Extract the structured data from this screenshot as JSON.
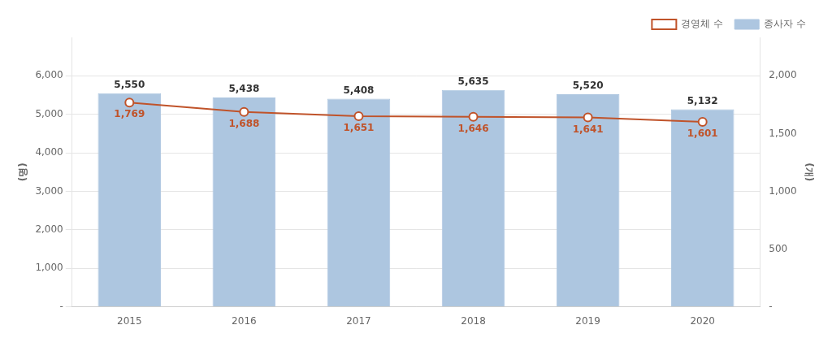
{
  "chart_data": {
    "type": "bar",
    "categories": [
      "2015",
      "2016",
      "2017",
      "2018",
      "2019",
      "2020"
    ],
    "series": [
      {
        "name": "종사자 수",
        "type": "bar",
        "color": "#adc6e0",
        "values": [
          5550,
          5438,
          5408,
          5635,
          5520,
          5132
        ],
        "value_labels": [
          "5,550",
          "5,438",
          "5,408",
          "5,635",
          "5,520",
          "5,132"
        ]
      },
      {
        "name": "경영체 수",
        "type": "line",
        "axis": "y2",
        "color": "#c0532a",
        "marker": "circle",
        "values": [
          1769,
          1688,
          1651,
          1646,
          1641,
          1601
        ],
        "value_labels": [
          "1,769",
          "1,688",
          "1,651",
          "1,646",
          "1,641",
          "1,601"
        ]
      }
    ],
    "ylabel": "(명)",
    "y2label": "(개)",
    "ylim": [
      0,
      7000
    ],
    "yticks": [
      {
        "value": 0,
        "label": "-"
      },
      {
        "value": 1000,
        "label": "1,000"
      },
      {
        "value": 2000,
        "label": "2,000"
      },
      {
        "value": 3000,
        "label": "3,000"
      },
      {
        "value": 4000,
        "label": "4,000"
      },
      {
        "value": 5000,
        "label": "5,000"
      },
      {
        "value": 6000,
        "label": "6,000"
      }
    ],
    "y2lim": [
      0,
      2333.33
    ],
    "y2ticks": [
      {
        "value": 0,
        "label": "-"
      },
      500,
      {
        "value": 1000,
        "label": "1,000"
      },
      {
        "value": 1500,
        "label": "1,500"
      },
      {
        "value": 2000,
        "label": "2,000"
      }
    ],
    "grid": true,
    "legend": "upper right",
    "data_labels": true
  }
}
